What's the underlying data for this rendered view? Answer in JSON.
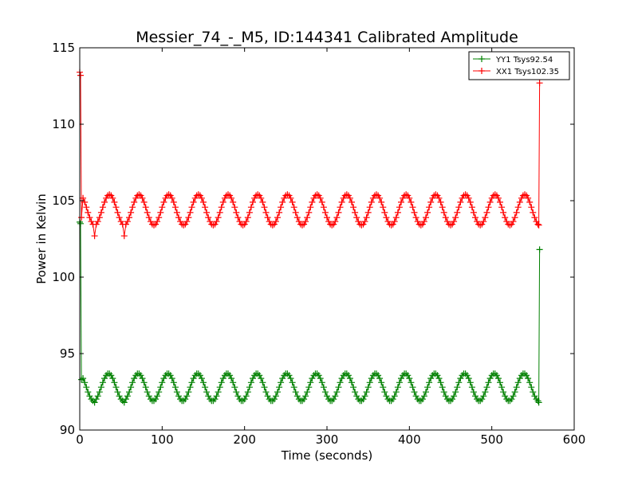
{
  "chart_data": {
    "type": "line",
    "title": "Messier_74_-_M5, ID:144341 Calibrated Amplitude",
    "xlabel": "Time (seconds)",
    "ylabel": "Power in Kelvin",
    "xlim": [
      0,
      600
    ],
    "ylim": [
      90,
      115
    ],
    "xticks": [
      0,
      100,
      200,
      300,
      400,
      500,
      600
    ],
    "yticks": [
      90,
      95,
      100,
      105,
      110,
      115
    ],
    "grid": false,
    "legend_position": "top-right",
    "series": [
      {
        "name": "YY1 Tsys92.54",
        "color": "#008000",
        "marker": "+",
        "start": [
          [
            0,
            103.6
          ],
          [
            1,
            103.5
          ],
          [
            2,
            93.3
          ]
        ],
        "osc": {
          "t0": 2,
          "t1": 557,
          "mean": 92.8,
          "amp": 0.9,
          "period": 36,
          "phase_peak": 35,
          "step": 2,
          "dip_at": [
            18,
            54
          ],
          "dip_value": 91.8
        },
        "end": [
          [
            557,
            91.8
          ],
          [
            558,
            101.8
          ]
        ]
      },
      {
        "name": "XX1 Tsys102.35",
        "color": "#ff0000",
        "marker": "+",
        "start": [
          [
            0,
            113.4
          ],
          [
            1,
            113.2
          ],
          [
            2,
            103.9
          ]
        ],
        "osc": {
          "t0": 2,
          "t1": 557,
          "mean": 104.4,
          "amp": 1.0,
          "period": 36,
          "phase_peak": 36,
          "step": 2,
          "dip_at": [
            18,
            54
          ],
          "dip_value": 102.7
        },
        "end": [
          [
            557,
            103.4
          ],
          [
            558,
            112.7
          ]
        ]
      }
    ]
  }
}
